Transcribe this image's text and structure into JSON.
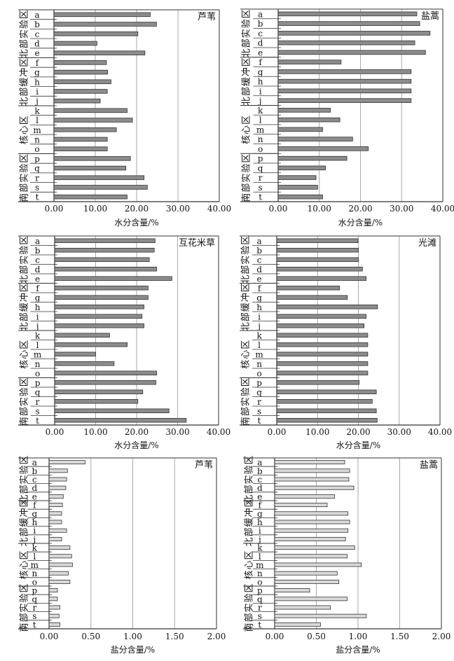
{
  "chart_data": [
    {
      "type": "bar",
      "orientation": "horizontal",
      "title": "芦苇",
      "xlabel": "水分含量/%",
      "xlim": [
        0,
        40
      ],
      "xticks": [
        "0.00",
        "10.00",
        "20.00",
        "30.00",
        "40.00"
      ],
      "xtick_values": [
        0,
        10,
        20,
        30,
        40
      ],
      "grid": "vertical",
      "legend": "none",
      "title_position": "top-right",
      "bar_color": "#8c8c8c",
      "groups": [
        {
          "label": "北部实验区",
          "size": 5
        },
        {
          "label": "北部缓冲区",
          "size": 5
        },
        {
          "label": "核心区",
          "size": 5
        },
        {
          "label": "南部实验区",
          "size": 5
        }
      ],
      "categories": [
        "a",
        "b",
        "c",
        "d",
        "e",
        "f",
        "g",
        "h",
        "i",
        "j",
        "k",
        "l",
        "m",
        "n",
        "o",
        "p",
        "q",
        "r",
        "s",
        "t"
      ],
      "values": [
        23.3,
        24.8,
        20.3,
        10.4,
        22.0,
        12.7,
        13.0,
        13.8,
        12.9,
        11.2,
        17.7,
        19.0,
        15.1,
        12.9,
        12.9,
        18.5,
        17.4,
        21.8,
        22.6,
        17.7
      ]
    },
    {
      "type": "bar",
      "orientation": "horizontal",
      "title": "盐蒿",
      "xlabel": "水分含量/%",
      "xlim": [
        0,
        40
      ],
      "xticks": [
        "0.00",
        "10.00",
        "20.00",
        "30.00",
        "40.00"
      ],
      "xtick_values": [
        0,
        10,
        20,
        30,
        40
      ],
      "grid": "vertical",
      "legend": "none",
      "title_position": "top-right",
      "bar_color": "#8c8c8c",
      "groups": [
        {
          "label": "北部实验区",
          "size": 5
        },
        {
          "label": "北部缓冲区",
          "size": 5
        },
        {
          "label": "核心区",
          "size": 5
        },
        {
          "label": "南部实验区",
          "size": 5
        }
      ],
      "categories": [
        "a",
        "b",
        "c",
        "d",
        "e",
        "f",
        "g",
        "h",
        "i",
        "j",
        "k",
        "l",
        "m",
        "n",
        "o",
        "p",
        "q",
        "r",
        "s",
        "t"
      ],
      "values": [
        33.7,
        34.4,
        36.9,
        33.2,
        35.8,
        15.3,
        32.3,
        32.3,
        32.3,
        32.3,
        12.7,
        15.0,
        10.8,
        18.1,
        21.9,
        16.7,
        11.5,
        9.2,
        9.6,
        10.8
      ]
    },
    {
      "type": "bar",
      "orientation": "horizontal",
      "title": "互花米草",
      "xlabel": "水分含量/%",
      "xlim": [
        0,
        40
      ],
      "xticks": [
        "0.00",
        "10.00",
        "20.00",
        "30.00",
        "40.00"
      ],
      "xtick_values": [
        0,
        10,
        20,
        30,
        40
      ],
      "grid": "vertical",
      "legend": "none",
      "title_position": "top-right",
      "bar_color": "#8c8c8c",
      "groups": [
        {
          "label": "北部实验区",
          "size": 5
        },
        {
          "label": "北部缓冲区",
          "size": 5
        },
        {
          "label": "核心区",
          "size": 5
        },
        {
          "label": "南部实验区",
          "size": 5
        }
      ],
      "categories": [
        "a",
        "b",
        "c",
        "d",
        "e",
        "f",
        "g",
        "h",
        "i",
        "j",
        "k",
        "l",
        "m",
        "n",
        "o",
        "p",
        "q",
        "r",
        "s",
        "t"
      ],
      "values": [
        24.5,
        24.3,
        23.1,
        24.9,
        28.6,
        22.8,
        22.8,
        21.8,
        21.3,
        21.8,
        13.4,
        17.7,
        10.0,
        14.5,
        24.9,
        24.7,
        21.5,
        20.3,
        27.9,
        32.1
      ]
    },
    {
      "type": "bar",
      "orientation": "horizontal",
      "title": "光滩",
      "xlabel": "水分含量/%",
      "xlim": [
        0,
        40
      ],
      "xticks": [
        "0.00",
        "10.00",
        "20.00",
        "30.00",
        "40.00"
      ],
      "xtick_values": [
        0,
        10,
        20,
        30,
        40
      ],
      "grid": "vertical",
      "legend": "none",
      "title_position": "top-right",
      "bar_color": "#8c8c8c",
      "groups": [
        {
          "label": "北部实验区",
          "size": 5
        },
        {
          "label": "北部缓冲区",
          "size": 5
        },
        {
          "label": "核心区",
          "size": 5
        },
        {
          "label": "南部实验区",
          "size": 5
        }
      ],
      "categories": [
        "a",
        "b",
        "c",
        "d",
        "e",
        "f",
        "g",
        "h",
        "i",
        "j",
        "k",
        "l",
        "m",
        "n",
        "o",
        "p",
        "q",
        "r",
        "s",
        "t"
      ],
      "values": [
        19.9,
        20.0,
        20.0,
        21.0,
        21.9,
        15.4,
        17.3,
        24.7,
        21.9,
        21.4,
        22.3,
        22.3,
        22.3,
        22.3,
        22.3,
        20.2,
        24.4,
        23.4,
        24.4,
        24.6
      ]
    },
    {
      "type": "bar",
      "orientation": "horizontal",
      "title": "芦苇",
      "xlabel": "盐分含量/%",
      "xlim": [
        0,
        2
      ],
      "xticks": [
        "0.00",
        "0.50",
        "1.00",
        "1.50",
        "2.00"
      ],
      "xtick_values": [
        0,
        0.5,
        1,
        1.5,
        2
      ],
      "grid": "vertical",
      "legend": "none",
      "title_position": "top-right",
      "bar_color": "#d9d9d9",
      "groups": [
        {
          "label": "北部实验区",
          "size": 5
        },
        {
          "label": "北部缓冲区",
          "size": 5
        },
        {
          "label": "核心区",
          "size": 5
        },
        {
          "label": "南部实验区",
          "size": 5
        }
      ],
      "categories": [
        "a",
        "b",
        "c",
        "d",
        "e",
        "f",
        "g",
        "h",
        "i",
        "j",
        "k",
        "l",
        "m",
        "n",
        "o",
        "p",
        "q",
        "r",
        "s",
        "t"
      ],
      "values": [
        0.43,
        0.22,
        0.21,
        0.2,
        0.17,
        0.16,
        0.15,
        0.15,
        0.21,
        0.15,
        0.25,
        0.27,
        0.28,
        0.23,
        0.25,
        0.1,
        0.1,
        0.13,
        0.12,
        0.13
      ]
    },
    {
      "type": "bar",
      "orientation": "horizontal",
      "title": "盐蒿",
      "xlabel": "盐分含量/%",
      "xlim": [
        0,
        2
      ],
      "xticks": [
        "0.00",
        "0.50",
        "1.00",
        "1.50",
        "2.00"
      ],
      "xtick_values": [
        0,
        0.5,
        1,
        1.5,
        2
      ],
      "grid": "vertical",
      "legend": "none",
      "title_position": "top-right",
      "bar_color": "#d9d9d9",
      "groups": [
        {
          "label": "北部实验区",
          "size": 5
        },
        {
          "label": "北部缓冲区",
          "size": 5
        },
        {
          "label": "核心区",
          "size": 5
        },
        {
          "label": "南部实验区",
          "size": 5
        }
      ],
      "categories": [
        "a",
        "b",
        "c",
        "d",
        "e",
        "f",
        "g",
        "h",
        "i",
        "j",
        "k",
        "l",
        "m",
        "n",
        "o",
        "p",
        "q",
        "r",
        "s",
        "t"
      ],
      "values": [
        0.84,
        0.9,
        0.89,
        0.95,
        0.72,
        0.63,
        0.88,
        0.9,
        0.88,
        0.85,
        0.96,
        0.87,
        1.04,
        0.75,
        0.77,
        0.42,
        0.87,
        0.67,
        1.1,
        0.55
      ]
    }
  ]
}
